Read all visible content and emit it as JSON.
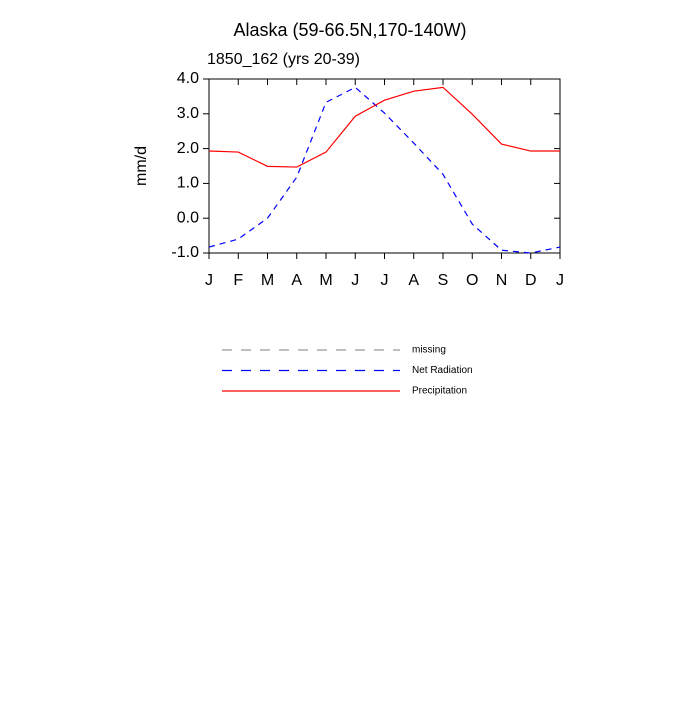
{
  "chart_data": {
    "type": "line",
    "title": "Alaska (59-66.5N,170-140W)",
    "subtitle": "1850_162 (yrs 20-39)",
    "y_label": "mm/d",
    "categories": [
      "J",
      "F",
      "M",
      "A",
      "M",
      "J",
      "J",
      "A",
      "S",
      "O",
      "N",
      "D",
      "J"
    ],
    "ylim": [
      -1,
      4
    ],
    "yticks": [
      {
        "value": -1,
        "label": "-1.0"
      },
      {
        "value": 0,
        "label": "0.0"
      },
      {
        "value": 1,
        "label": "1.0"
      },
      {
        "value": 2,
        "label": "2.0"
      },
      {
        "value": 3,
        "label": "3.0"
      },
      {
        "value": 4,
        "label": "4.0"
      }
    ],
    "series": [
      {
        "name": "missing",
        "color": "#999999",
        "dashed": true,
        "values": [
          null,
          null,
          null,
          null,
          null,
          null,
          null,
          null,
          null,
          null,
          null,
          null,
          null
        ]
      },
      {
        "name": "Net Radiation",
        "color": "#0000ff",
        "dashed": true,
        "values": [
          -0.83,
          -0.6,
          0.0,
          1.18,
          3.33,
          3.76,
          3.02,
          2.16,
          1.26,
          -0.17,
          -0.92,
          -1.0,
          -0.83
        ]
      },
      {
        "name": "Precipitation",
        "color": "#ff0000",
        "dashed": false,
        "values": [
          1.93,
          1.9,
          1.49,
          1.47,
          1.9,
          2.93,
          3.39,
          3.65,
          3.76,
          2.99,
          2.13,
          1.93,
          1.93
        ]
      }
    ]
  }
}
